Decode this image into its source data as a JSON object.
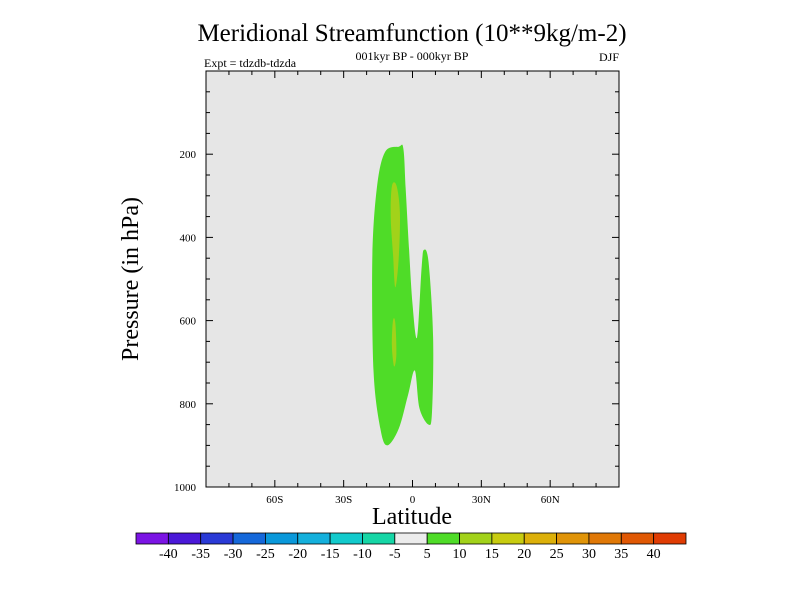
{
  "chart_data": {
    "type": "contour",
    "title": "Meridional Streamfunction (10**9kg/m-2)",
    "subtitle": "001kyr BP - 000kyr BP",
    "left_label": "Expt = tdzdb-tdzda",
    "right_label": "DJF",
    "xlabel": "Latitude",
    "ylabel": "Pressure (in hPa)",
    "x_axis": {
      "min": -90,
      "max": 90,
      "ticks": [
        {
          "value": -60,
          "label": "60S"
        },
        {
          "value": -30,
          "label": "30S"
        },
        {
          "value": 0,
          "label": "0"
        },
        {
          "value": 30,
          "label": "30N"
        },
        {
          "value": 60,
          "label": "60N"
        }
      ]
    },
    "y_axis": {
      "min": 0,
      "max": 1000,
      "reversed": true,
      "ticks": [
        {
          "value": 200,
          "label": "200"
        },
        {
          "value": 400,
          "label": "400"
        },
        {
          "value": 600,
          "label": "600"
        },
        {
          "value": 800,
          "label": "800"
        },
        {
          "value": 1000,
          "label": "1000"
        }
      ]
    },
    "regions": [
      {
        "level": "5 to 10",
        "color": "#4fdc28",
        "points": [
          [
            -11,
            900
          ],
          [
            -14,
            860
          ],
          [
            -17,
            720
          ],
          [
            -17.5,
            450
          ],
          [
            -15.5,
            280
          ],
          [
            -12,
            195
          ],
          [
            -6,
            182
          ],
          [
            -4,
            186
          ],
          [
            -3,
            280
          ],
          [
            -1.5,
            430
          ],
          [
            0,
            560
          ],
          [
            2,
            640
          ],
          [
            4,
            470
          ],
          [
            5,
            430
          ],
          [
            7,
            460
          ],
          [
            9,
            640
          ],
          [
            8.5,
            820
          ],
          [
            7,
            850
          ],
          [
            3,
            810
          ],
          [
            1,
            720
          ],
          [
            -2,
            780
          ],
          [
            -6,
            860
          ]
        ]
      },
      {
        "level": "10 to 15",
        "color": "#a2d21a",
        "points": [
          [
            -9,
            277
          ],
          [
            -7,
            275
          ],
          [
            -5.5,
            340
          ],
          [
            -6,
            450
          ],
          [
            -7.5,
            520
          ],
          [
            -8.5,
            440
          ],
          [
            -9.5,
            350
          ]
        ]
      },
      {
        "level": "10 to 15",
        "color": "#a2d21a",
        "points": [
          [
            -8.5,
            600
          ],
          [
            -7.5,
            605
          ],
          [
            -7,
            680
          ],
          [
            -8,
            710
          ],
          [
            -9,
            660
          ]
        ]
      }
    ],
    "colorbar": {
      "colors": [
        "#7b14e4",
        "#4a18d8",
        "#2a3ad6",
        "#1568da",
        "#0a98da",
        "#14b0dc",
        "#12cacc",
        "#16d6a6",
        "#ececec",
        "#4fdc28",
        "#a2d21a",
        "#c8cc10",
        "#dcb00a",
        "#e09408",
        "#e07806",
        "#e05804",
        "#e03c04"
      ],
      "labels": [
        "-40",
        "-35",
        "-30",
        "-25",
        "-20",
        "-15",
        "-10",
        "-5",
        "5",
        "10",
        "15",
        "20",
        "25",
        "30",
        "35",
        "40"
      ]
    }
  }
}
